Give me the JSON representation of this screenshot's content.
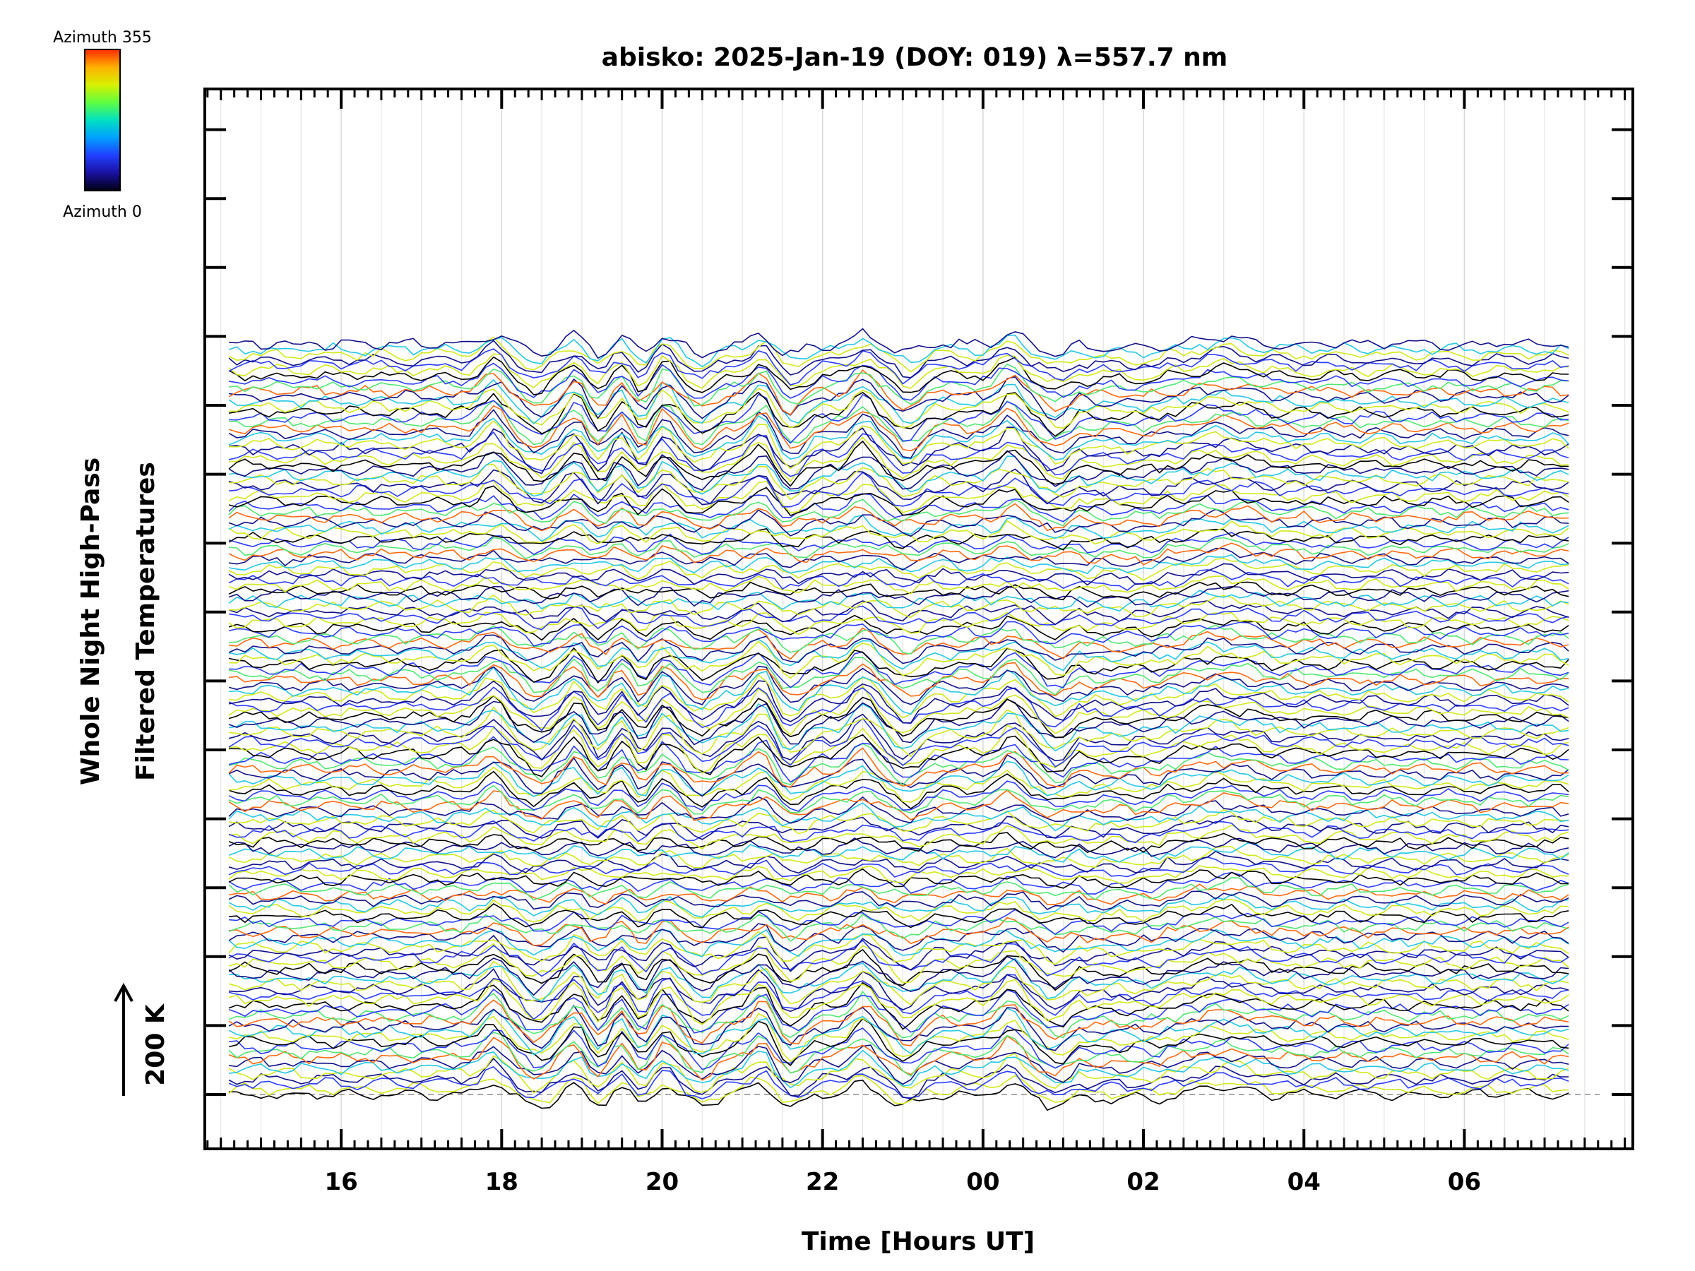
{
  "chart_data": {
    "type": "line",
    "title": "abisko: 2025-Jan-19 (DOY: 019) λ=557.7 nm",
    "xlabel": "Time [Hours UT]",
    "ylabel_line1": "Whole Night High-Pass",
    "ylabel_line2": "Filtered Temperatures",
    "scale_label": "200 K",
    "x_ticks": [
      "16",
      "18",
      "20",
      "22",
      "00",
      "02",
      "04",
      "06"
    ],
    "xlim_hours": [
      14.3,
      32.1
    ],
    "colorbar": {
      "top_label": "Azimuth 355",
      "bottom_label": "Azimuth 0",
      "colors": [
        "#ff2a00",
        "#ffb000",
        "#d8f000",
        "#60ff40",
        "#00e0c0",
        "#00a0ff",
        "#2040ff",
        "#1a10a0",
        "#000010"
      ]
    },
    "line_colors": {
      "black": "#000000",
      "navy": "#10108a",
      "blue": "#2a3cff",
      "cyan": "#24c8e6",
      "green": "#4fe870",
      "yellow": "#d2ea1a",
      "orange": "#ff6a10"
    },
    "n_profiles": 144,
    "time_range_hours": [
      14.6,
      31.3
    ],
    "event_times": [
      17.9,
      18.45,
      18.95,
      19.2,
      19.5,
      19.75,
      20.0,
      20.5,
      21.25,
      21.6,
      22.5,
      23.05,
      24.35,
      24.9
    ],
    "reference_line": "dashed"
  }
}
